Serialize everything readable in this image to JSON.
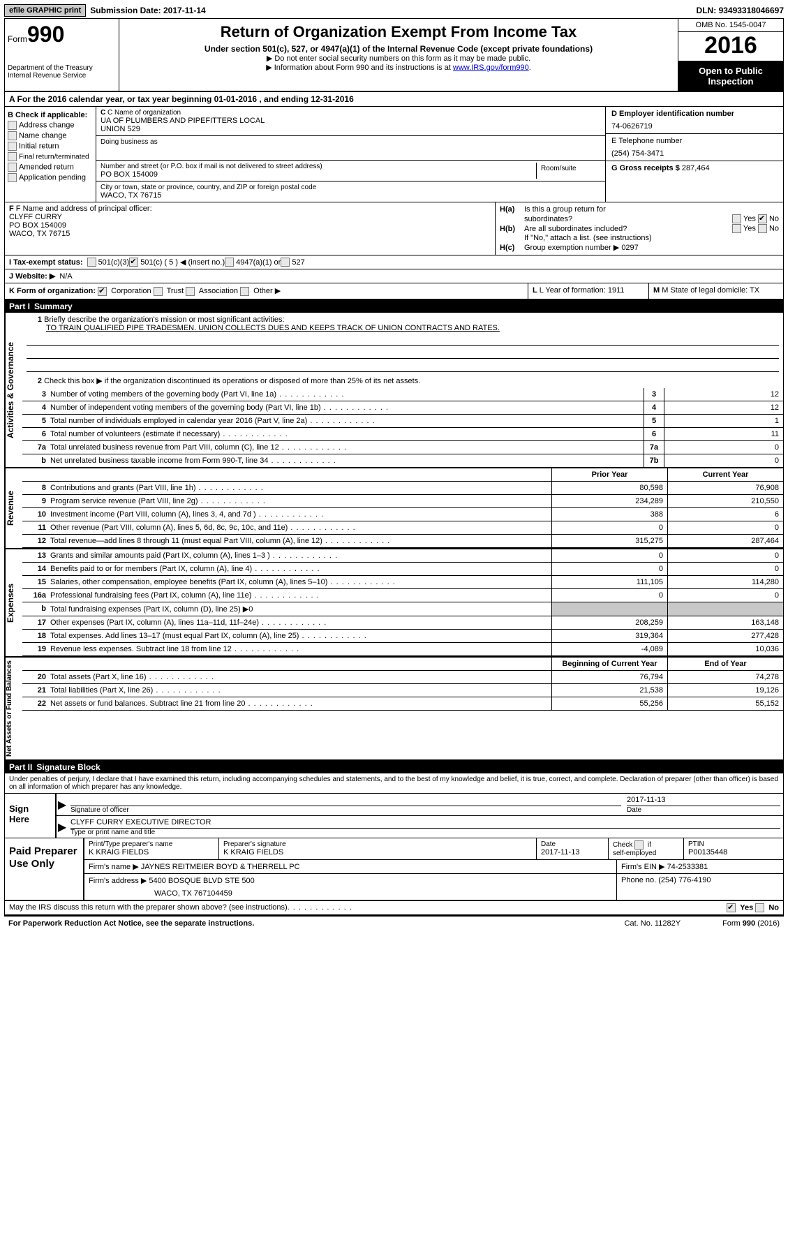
{
  "topbar": {
    "efile": "efile GRAPHIC print",
    "sub_label": "Submission Date:",
    "sub_date": "2017-11-14",
    "dln_label": "DLN:",
    "dln": "93493318046697"
  },
  "header": {
    "form_word": "Form",
    "form_num": "990",
    "dept1": "Department of the Treasury",
    "dept2": "Internal Revenue Service",
    "title": "Return of Organization Exempt From Income Tax",
    "sub1": "Under section 501(c), 527, or 4947(a)(1) of the Internal Revenue Code (except private foundations)",
    "sub2a": "▶ Do not enter social security numbers on this form as it may be made public.",
    "sub2b": "▶ Information about Form 990 and its instructions is at ",
    "link": "www.IRS.gov/form990",
    "omb": "OMB No. 1545-0047",
    "year": "2016",
    "open": "Open to Public Inspection"
  },
  "rowA": "A  For the 2016 calendar year, or tax year beginning 01-01-2016   , and ending 12-31-2016",
  "B": {
    "hdr": "B Check if applicable:",
    "items": [
      "Address change",
      "Name change",
      "Initial return",
      "Final return/terminated",
      "Amended return",
      "Application pending"
    ]
  },
  "C": {
    "name_lbl": "C Name of organization",
    "name1": "UA OF PLUMBERS AND PIPEFITTERS LOCAL",
    "name2": "UNION 529",
    "dba_lbl": "Doing business as",
    "addr_lbl": "Number and street (or P.O. box if mail is not delivered to street address)",
    "room_lbl": "Room/suite",
    "addr": "PO BOX 154009",
    "city_lbl": "City or town, state or province, country, and ZIP or foreign postal code",
    "city": "WACO, TX  76715"
  },
  "D": {
    "lbl": "D Employer identification number",
    "val": "74-0626719"
  },
  "E": {
    "lbl": "E Telephone number",
    "val": "(254) 754-3471"
  },
  "G": {
    "lbl": "G Gross receipts $",
    "val": "287,464"
  },
  "F": {
    "lbl": "F  Name and address of principal officer:",
    "l1": "CLYFF CURRY",
    "l2": "PO BOX 154009",
    "l3": "WACO, TX  76715"
  },
  "H": {
    "a": "Is this a group return for",
    "a2": "subordinates?",
    "b": "Are all subordinates included?",
    "note": "If \"No,\" attach a list. (see instructions)",
    "c": "Group exemption number ▶",
    "c_val": "0297"
  },
  "I": {
    "lbl": "I  Tax-exempt status:",
    "o1": "501(c)(3)",
    "o2": "501(c) ( 5 ) ◀ (insert no.)",
    "o3": "4947(a)(1) or",
    "o4": "527"
  },
  "J": {
    "lbl": "J  Website: ▶",
    "val": "N/A"
  },
  "K": {
    "lbl": "K Form of organization:",
    "o1": "Corporation",
    "o2": "Trust",
    "o3": "Association",
    "o4": "Other ▶",
    "L": "L Year of formation: 1911",
    "M": "M State of legal domicile: TX"
  },
  "part1": {
    "num": "Part I",
    "title": "Summary"
  },
  "gov": {
    "tab": "Activities & Governance",
    "q1": "Briefly describe the organization's mission or most significant activities:",
    "q1v": "TO TRAIN QUALIFIED PIPE TRADESMEN. UNION COLLECTS DUES AND KEEPS TRACK OF UNION CONTRACTS AND RATES.",
    "q2": "Check this box ▶         if the organization discontinued its operations or disposed of more than 25% of its net assets.",
    "rows": [
      {
        "n": "3",
        "t": "Number of voting members of the governing body (Part VI, line 1a)",
        "c": "3",
        "v": "12"
      },
      {
        "n": "4",
        "t": "Number of independent voting members of the governing body (Part VI, line 1b)",
        "c": "4",
        "v": "12"
      },
      {
        "n": "5",
        "t": "Total number of individuals employed in calendar year 2016 (Part V, line 2a)",
        "c": "5",
        "v": "1"
      },
      {
        "n": "6",
        "t": "Total number of volunteers (estimate if necessary)",
        "c": "6",
        "v": "11"
      },
      {
        "n": "7a",
        "t": "Total unrelated business revenue from Part VIII, column (C), line 12",
        "c": "7a",
        "v": "0"
      },
      {
        "n": "b",
        "t": "Net unrelated business taxable income from Form 990-T, line 34",
        "c": "7b",
        "v": "0"
      }
    ]
  },
  "rev": {
    "tab": "Revenue",
    "h1": "Prior Year",
    "h2": "Current Year",
    "rows": [
      {
        "n": "8",
        "t": "Contributions and grants (Part VIII, line 1h)",
        "v1": "80,598",
        "v2": "76,908"
      },
      {
        "n": "9",
        "t": "Program service revenue (Part VIII, line 2g)",
        "v1": "234,289",
        "v2": "210,550"
      },
      {
        "n": "10",
        "t": "Investment income (Part VIII, column (A), lines 3, 4, and 7d )",
        "v1": "388",
        "v2": "6"
      },
      {
        "n": "11",
        "t": "Other revenue (Part VIII, column (A), lines 5, 6d, 8c, 9c, 10c, and 11e)",
        "v1": "0",
        "v2": "0"
      },
      {
        "n": "12",
        "t": "Total revenue—add lines 8 through 11 (must equal Part VIII, column (A), line 12)",
        "v1": "315,275",
        "v2": "287,464"
      }
    ]
  },
  "exp": {
    "tab": "Expenses",
    "rows": [
      {
        "n": "13",
        "t": "Grants and similar amounts paid (Part IX, column (A), lines 1–3 )",
        "v1": "0",
        "v2": "0"
      },
      {
        "n": "14",
        "t": "Benefits paid to or for members (Part IX, column (A), line 4)",
        "v1": "0",
        "v2": "0"
      },
      {
        "n": "15",
        "t": "Salaries, other compensation, employee benefits (Part IX, column (A), lines 5–10)",
        "v1": "111,105",
        "v2": "114,280"
      },
      {
        "n": "16a",
        "t": "Professional fundraising fees (Part IX, column (A), line 11e)",
        "v1": "0",
        "v2": "0"
      },
      {
        "n": "b",
        "t": "Total fundraising expenses (Part IX, column (D), line 25) ▶0",
        "v1": "",
        "v2": "",
        "grey": true
      },
      {
        "n": "17",
        "t": "Other expenses (Part IX, column (A), lines 11a–11d, 11f–24e)",
        "v1": "208,259",
        "v2": "163,148"
      },
      {
        "n": "18",
        "t": "Total expenses. Add lines 13–17 (must equal Part IX, column (A), line 25)",
        "v1": "319,364",
        "v2": "277,428"
      },
      {
        "n": "19",
        "t": "Revenue less expenses. Subtract line 18 from line 12",
        "v1": "-4,089",
        "v2": "10,036"
      }
    ]
  },
  "na": {
    "tab": "Net Assets or Fund Balances",
    "h1": "Beginning of Current Year",
    "h2": "End of Year",
    "rows": [
      {
        "n": "20",
        "t": "Total assets (Part X, line 16)",
        "v1": "76,794",
        "v2": "74,278"
      },
      {
        "n": "21",
        "t": "Total liabilities (Part X, line 26)",
        "v1": "21,538",
        "v2": "19,126"
      },
      {
        "n": "22",
        "t": "Net assets or fund balances. Subtract line 21 from line 20",
        "v1": "55,256",
        "v2": "55,152"
      }
    ]
  },
  "part2": {
    "num": "Part II",
    "title": "Signature Block"
  },
  "penalty": "Under penalties of perjury, I declare that I have examined this return, including accompanying schedules and statements, and to the best of my knowledge and belief, it is true, correct, and complete. Declaration of preparer (other than officer) is based on all information of which preparer has any knowledge.",
  "sign": {
    "here": "Sign Here",
    "sig_lbl": "Signature of officer",
    "date_lbl": "Date",
    "date_val": "2017-11-13",
    "name_val": "CLYFF CURRY  EXECUTIVE DIRECTOR",
    "name_lbl": "Type or print name and title"
  },
  "paid": {
    "lbl": "Paid Preparer Use Only",
    "c1": "Print/Type preparer's name",
    "c1v": "K KRAIG FIELDS",
    "c2": "Preparer's signature",
    "c2v": "K KRAIG FIELDS",
    "c3": "Date",
    "c3v": "2017-11-13",
    "c4a": "Check",
    "c4b": "if",
    "c4c": "self-employed",
    "c5": "PTIN",
    "c5v": "P00135448",
    "f1": "Firm's name     ▶",
    "f1v": "JAYNES REITMEIER BOYD & THERRELL PC",
    "f2": "Firm's EIN ▶",
    "f2v": "74-2533381",
    "f3": "Firm's address ▶",
    "f3v": "5400 BOSQUE BLVD STE 500",
    "f3v2": "WACO, TX  767104459",
    "f4": "Phone no.",
    "f4v": "(254) 776-4190"
  },
  "discuss": "May the IRS discuss this return with the preparer shown above? (see instructions)",
  "footer": {
    "l": "For Paperwork Reduction Act Notice, see the separate instructions.",
    "m": "Cat. No. 11282Y",
    "r": "Form 990 (2016)"
  },
  "yn": {
    "yes": "Yes",
    "no": "No"
  }
}
